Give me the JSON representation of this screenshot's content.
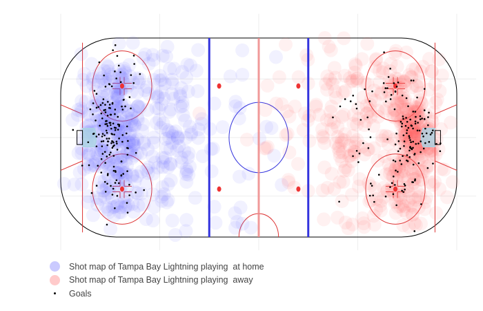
{
  "chart_data": {
    "type": "scatter",
    "title": "",
    "xlabel": "",
    "ylabel": "",
    "xlim": [
      -100,
      100
    ],
    "ylim": [
      -42.5,
      42.5
    ],
    "grid": true,
    "legend_position": "bottom-left",
    "series": [
      {
        "name": "Shot map of Tampa Bay Lightning playing  at home",
        "marker": "large translucent circle",
        "color": "#6666ff",
        "clusters": [
          {
            "cx": -73,
            "cy": 0,
            "sx": 8,
            "sy": 9,
            "n": 140
          },
          {
            "cx": -70,
            "cy": 22,
            "sx": 8,
            "sy": 8,
            "n": 70
          },
          {
            "cx": -70,
            "cy": -22,
            "sx": 8,
            "sy": 8,
            "n": 70
          },
          {
            "cx": -45,
            "cy": 0,
            "sx": 9,
            "sy": 24,
            "n": 110
          },
          {
            "cx": -85,
            "cy": 0,
            "sx": 6,
            "sy": 20,
            "n": 40
          },
          {
            "cx": -10,
            "cy": 0,
            "sx": 14,
            "sy": 26,
            "n": 35
          }
        ]
      },
      {
        "name": "Shot map of Tampa Bay Lightning playing  away",
        "marker": "large translucent circle",
        "color": "#ff6666",
        "clusters": [
          {
            "cx": 78,
            "cy": 0,
            "sx": 6,
            "sy": 8,
            "n": 160
          },
          {
            "cx": 70,
            "cy": 22,
            "sx": 8,
            "sy": 8,
            "n": 70
          },
          {
            "cx": 70,
            "cy": -22,
            "sx": 8,
            "sy": 8,
            "n": 70
          },
          {
            "cx": 45,
            "cy": 0,
            "sx": 10,
            "sy": 24,
            "n": 120
          },
          {
            "cx": 85,
            "cy": 0,
            "sx": 6,
            "sy": 20,
            "n": 40
          },
          {
            "cx": 12,
            "cy": 0,
            "sx": 14,
            "sy": 26,
            "n": 30
          }
        ]
      },
      {
        "name": "Goals",
        "marker": "small black dot",
        "color": "#000000",
        "clusters": [
          {
            "cx": -75,
            "cy": 2,
            "sx": 5,
            "sy": 8,
            "n": 110
          },
          {
            "cx": -70,
            "cy": 24,
            "sx": 6,
            "sy": 7,
            "n": 25
          },
          {
            "cx": -70,
            "cy": -22,
            "sx": 6,
            "sy": 7,
            "n": 25
          },
          {
            "cx": 78,
            "cy": 0,
            "sx": 5,
            "sy": 8,
            "n": 80
          },
          {
            "cx": 70,
            "cy": 22,
            "sx": 6,
            "sy": 7,
            "n": 20
          },
          {
            "cx": 72,
            "cy": -20,
            "sx": 6,
            "sy": 8,
            "n": 30
          },
          {
            "cx": 50,
            "cy": 0,
            "sx": 8,
            "sy": 20,
            "n": 25
          }
        ]
      }
    ]
  },
  "legend": {
    "items": [
      {
        "label": "Shot map of Tampa Bay Lightning playing  at home",
        "color": "#6666ff"
      },
      {
        "label": "Shot map of Tampa Bay Lightning playing  away",
        "color": "#ff6666"
      },
      {
        "label": "Goals",
        "color": "#000000"
      }
    ]
  },
  "rink": {
    "board_color": "#000000",
    "blue_line_color": "#3333dd",
    "center_line_color": "#ee8888",
    "goal_line_color": "#dd3333",
    "faceoff_color": "#ee3333",
    "crease_color": "#aad3e3"
  }
}
